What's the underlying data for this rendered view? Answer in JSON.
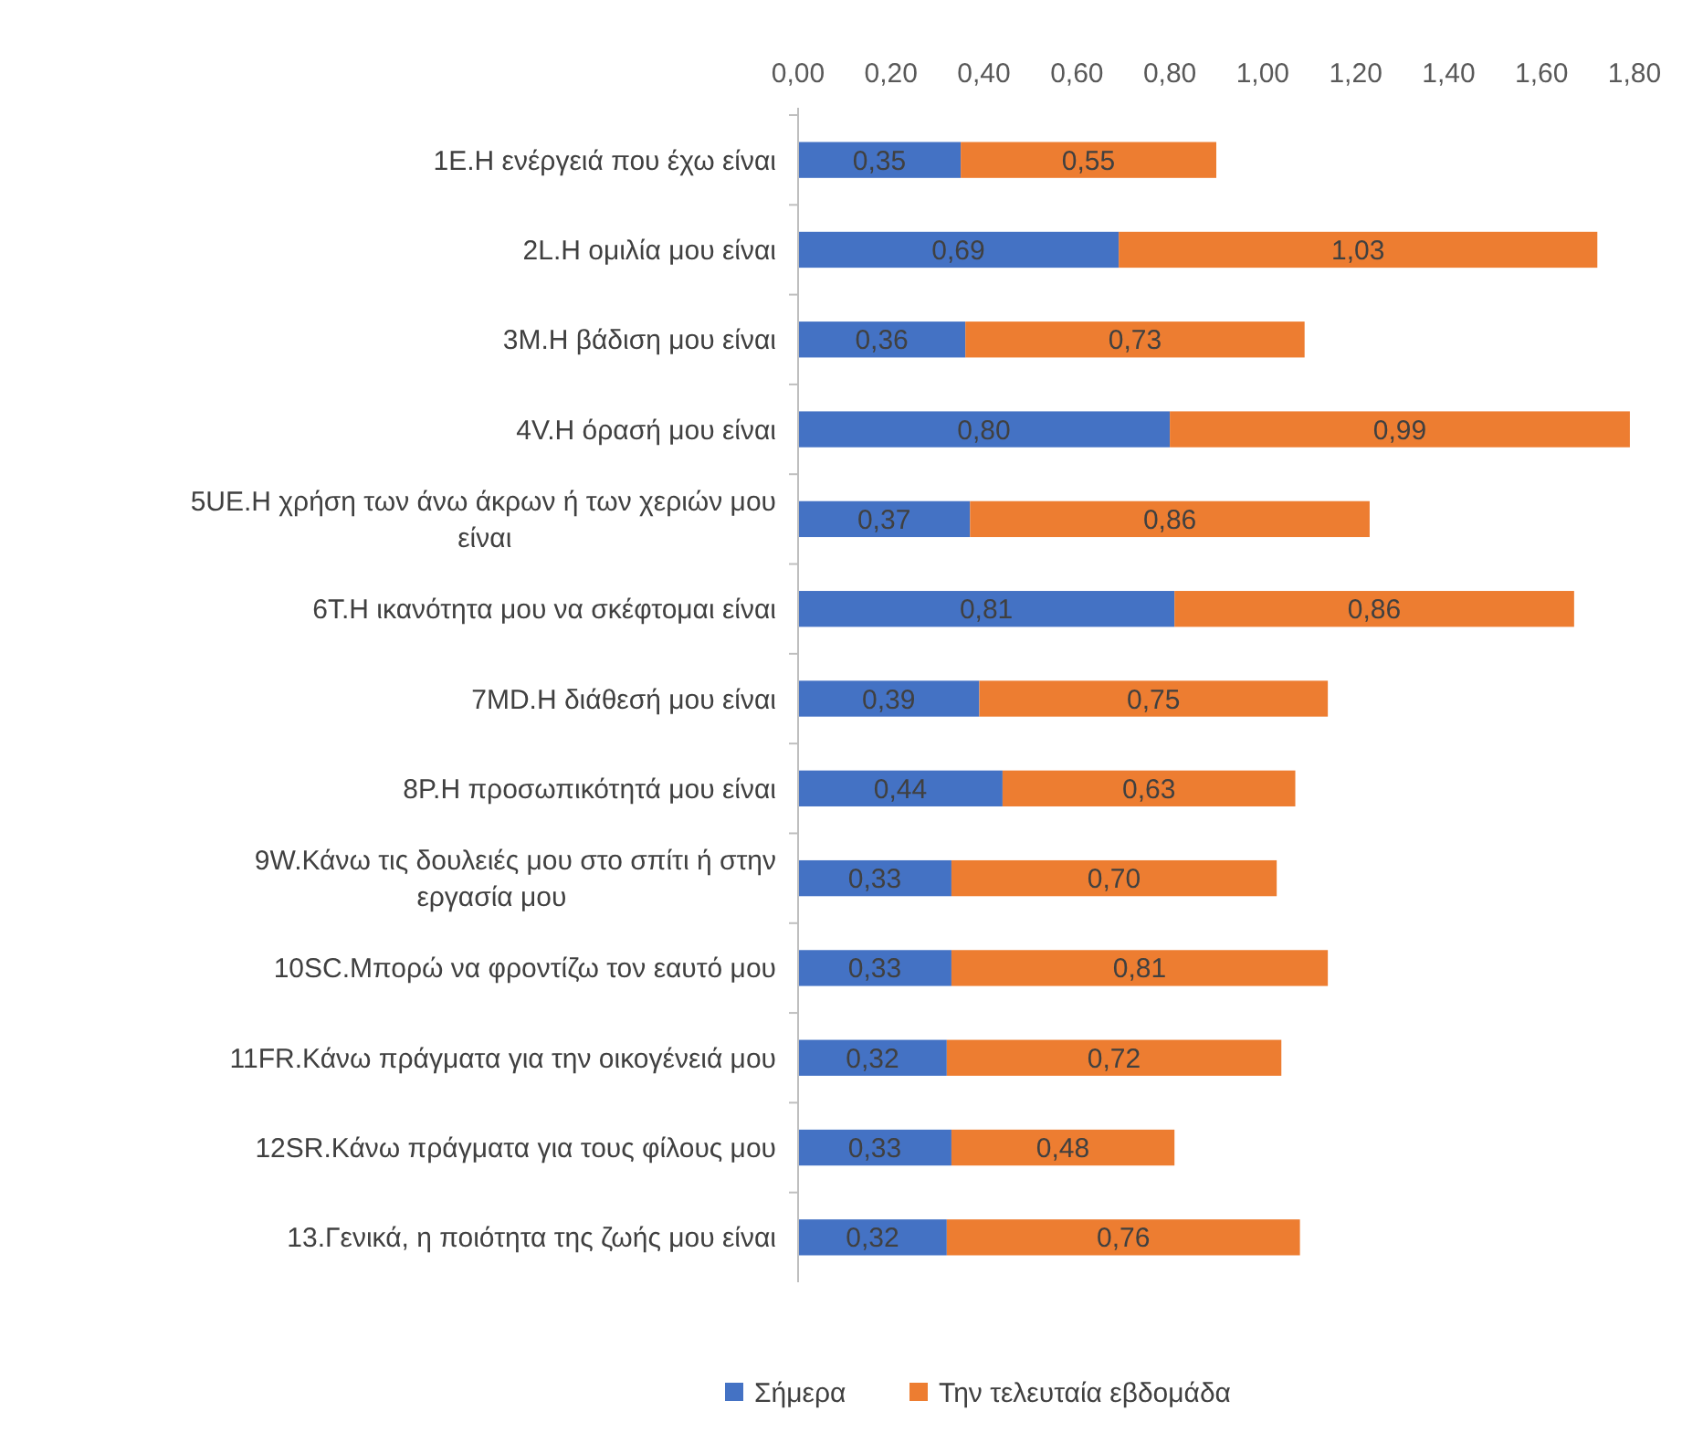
{
  "chart_data": {
    "type": "bar",
    "orientation": "horizontal",
    "stacked": true,
    "categories": [
      "1E.Η ενέργειά που έχω είναι",
      "2L.Η ομιλία μου είναι",
      "3M.Η βάδιση μου είναι",
      "4V.Η όρασή μου είναι",
      "5UE.Η χρήση των άνω άκρων ή των χεριών μου είναι",
      "6T.Η ικανότητα μου να σκέφτομαι είναι",
      "7MD.Η διάθεσή μου είναι",
      "8P.Η προσωπικότητά μου είναι",
      "9W.Κάνω τις δουλειές μου στο σπίτι ή στην εργασία μου",
      "10SC.Μπορώ να φροντίζω τον εαυτό μου",
      "11FR.Κάνω πράγματα για την οικογένειά μου",
      "12SR.Κάνω πράγματα για τους φίλους μου",
      "13.Γενικά, η ποιότητα της ζωής μου είναι"
    ],
    "series": [
      {
        "name": "Σήμερα",
        "color": "#4472c4",
        "values": [
          0.35,
          0.69,
          0.36,
          0.8,
          0.37,
          0.81,
          0.39,
          0.44,
          0.33,
          0.33,
          0.32,
          0.33,
          0.32
        ],
        "value_labels": [
          "0,35",
          "0,69",
          "0,36",
          "0,80",
          "0,37",
          "0,81",
          "0,39",
          "0,44",
          "0,33",
          "0,33",
          "0,32",
          "0,33",
          "0,32"
        ]
      },
      {
        "name": "Την τελευταία εβδομάδα",
        "color": "#ed7d31",
        "values": [
          0.55,
          1.03,
          0.73,
          0.99,
          0.86,
          0.86,
          0.75,
          0.63,
          0.7,
          0.81,
          0.72,
          0.48,
          0.76
        ],
        "value_labels": [
          "0,55",
          "1,03",
          "0,73",
          "0,99",
          "0,86",
          "0,86",
          "0,75",
          "0,63",
          "0,70",
          "0,81",
          "0,72",
          "0,48",
          "0,76"
        ]
      }
    ],
    "xlim": [
      0,
      1.8
    ],
    "xticks": [
      {
        "value": 0,
        "label": "0,00"
      },
      {
        "value": 0.2,
        "label": "0,20"
      },
      {
        "value": 0.4,
        "label": "0,40"
      },
      {
        "value": 0.6,
        "label": "0,60"
      },
      {
        "value": 0.8,
        "label": "0,80"
      },
      {
        "value": 1,
        "label": "1,00"
      },
      {
        "value": 1.2,
        "label": "1,20"
      },
      {
        "value": 1.4,
        "label": "1,40"
      },
      {
        "value": 1.6,
        "label": "1,60"
      },
      {
        "value": 1.8,
        "label": "1,80"
      }
    ],
    "legend": "bottom"
  }
}
